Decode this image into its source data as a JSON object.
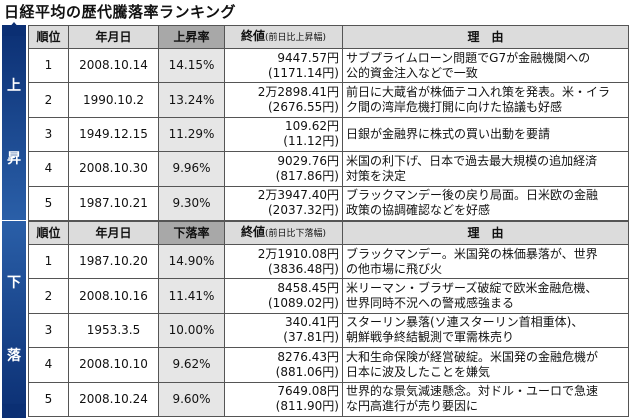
{
  "title": "日経平均の歴代騰落率ランキング",
  "sidebar": {
    "up_label": [
      "上",
      "昇"
    ],
    "down_label": [
      "下",
      "落"
    ]
  },
  "up_table": {
    "headers": {
      "rank": "順位",
      "date": "年月日",
      "pct": "上昇率",
      "value": "終値",
      "value_sub": "(前日比上昇幅)",
      "reason": "理　由"
    },
    "rows": [
      {
        "rank": "1",
        "date": "2008.10.14",
        "pct": "14.15%",
        "value": "9447.57円",
        "change": "(1171.14円)",
        "reason": [
          "サブプライムローン問題でG7が金融機関への",
          "公的資金注入などで一致"
        ]
      },
      {
        "rank": "2",
        "date": "1990.10.2",
        "pct": "13.24%",
        "value": "2万2898.41円",
        "change": "(2676.55円)",
        "reason": [
          "前日に大蔵省が株価テコ入れ策を発表。米・イラ",
          "ク間の湾岸危機打開に向けた協議も好感"
        ]
      },
      {
        "rank": "3",
        "date": "1949.12.15",
        "pct": "11.29%",
        "value": "109.62円",
        "change": "(11.12円)",
        "reason": [
          "日銀が金融界に株式の買い出動を要請"
        ]
      },
      {
        "rank": "4",
        "date": "2008.10.30",
        "pct": "9.96%",
        "value": "9029.76円",
        "change": "(817.86円)",
        "reason": [
          "米国の利下げ、日本で過去最大規模の追加経済",
          "対策を決定"
        ]
      },
      {
        "rank": "5",
        "date": "1987.10.21",
        "pct": "9.30%",
        "value": "2万3947.40円",
        "change": "(2037.32円)",
        "reason": [
          "ブラックマンデー後の戻り局面。日米欧の金融",
          "政策の協調確認などを好感"
        ]
      }
    ]
  },
  "down_table": {
    "headers": {
      "rank": "順位",
      "date": "年月日",
      "pct": "下落率",
      "value": "終値",
      "value_sub": "(前日比下落幅)",
      "reason": "理　由"
    },
    "rows": [
      {
        "rank": "1",
        "date": "1987.10.20",
        "pct": "14.90%",
        "value": "2万1910.08円",
        "change": "(3836.48円)",
        "reason": [
          "ブラックマンデー。米国発の株価暴落が、世界",
          "の他市場に飛び火"
        ]
      },
      {
        "rank": "2",
        "date": "2008.10.16",
        "pct": "11.41%",
        "value": "8458.45円",
        "change": "(1089.02円)",
        "reason": [
          "米リーマン・ブラザーズ破綻で欧米金融危機、",
          "世界同時不況への警戒感強まる"
        ]
      },
      {
        "rank": "3",
        "date": "1953.3.5",
        "pct": "10.00%",
        "value": "340.41円",
        "change": "(37.81円)",
        "reason": [
          "スターリン暴落(ソ連スターリン首相重体)、",
          "朝鮮戦争終結観測で軍需株売り"
        ]
      },
      {
        "rank": "4",
        "date": "2008.10.10",
        "pct": "9.62%",
        "value": "8276.43円",
        "change": "(881.06円)",
        "reason": [
          "大和生命保険が経営破綻。米国発の金融危機が",
          "日本に波及したことを嫌気"
        ]
      },
      {
        "rank": "5",
        "date": "2008.10.24",
        "pct": "9.60%",
        "value": "7649.08円",
        "change": "(811.90円)",
        "reason": [
          "世界的な景気減速懸念。対ドル・ユーロで急速",
          "な円高進行が売り要因に"
        ]
      }
    ]
  }
}
